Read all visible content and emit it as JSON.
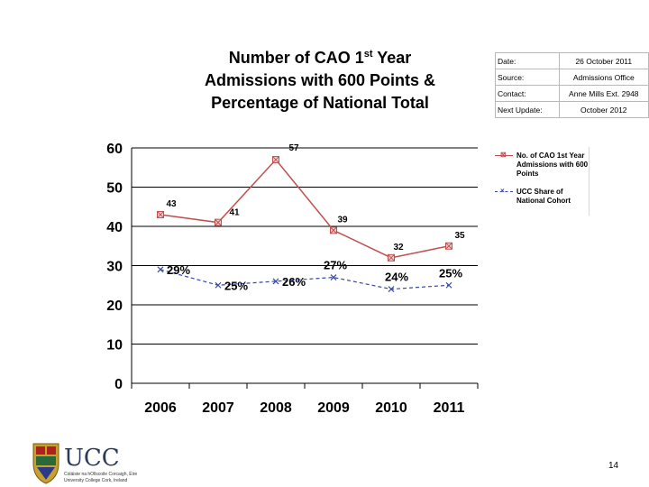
{
  "header": {
    "title_line1_a": "Number of CAO 1",
    "title_line1_sup": "st",
    "title_line1_b": " Year",
    "title_line2": "Admissions with 600 Points &",
    "title_line3": "Percentage of National Total"
  },
  "info_table": [
    {
      "key": "Date:",
      "value": "26 October 2011"
    },
    {
      "key": "Source:",
      "value": "Admissions Office"
    },
    {
      "key": "Contact:",
      "value": "Anne Mills Ext. 2948"
    },
    {
      "key": "Next Update:",
      "value": "October 2012"
    }
  ],
  "chart_data": {
    "type": "line",
    "categories": [
      "2006",
      "2007",
      "2008",
      "2009",
      "2010",
      "2011"
    ],
    "ylim": [
      0,
      60
    ],
    "yticks": [
      0,
      10,
      20,
      30,
      40,
      50,
      60
    ],
    "grid": false,
    "legend_position": "right",
    "series": [
      {
        "name": "No. of CAO 1st Year Admissions with 600 Points",
        "values": [
          43,
          41,
          57,
          39,
          32,
          35
        ],
        "labels": [
          "43",
          "41",
          "57",
          "39",
          "32",
          "35"
        ],
        "color": "#c0504d",
        "marker": "square-x"
      },
      {
        "name": "UCC Share of National Cohort",
        "values": [
          29,
          25,
          26,
          27,
          24,
          25
        ],
        "labels": [
          "29%",
          "25%",
          "26%",
          "27%",
          "24%",
          "25%"
        ],
        "color": "#3848a8",
        "marker": "x",
        "line_style": "dashed"
      }
    ]
  },
  "logo": {
    "wordmark": "UCC",
    "line1": "Coláiste na hOllscoile Corcaigh, Éire",
    "line2": "University College Cork, Ireland"
  },
  "page_number": "14"
}
